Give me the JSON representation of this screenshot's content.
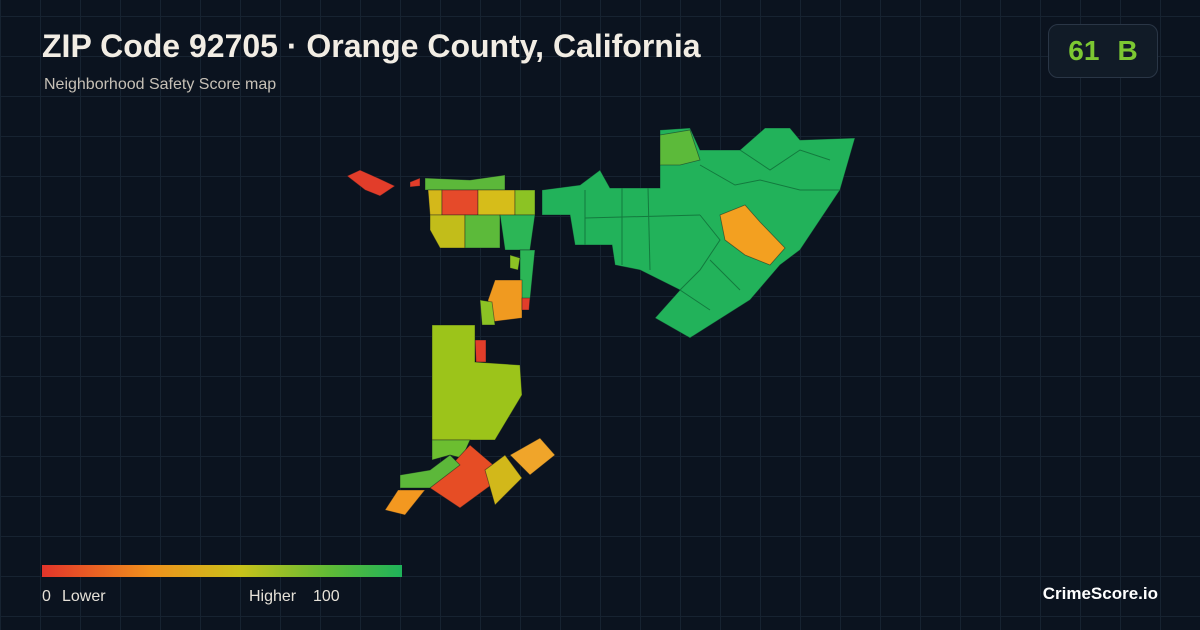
{
  "header": {
    "title": "ZIP Code 92705 · Orange County, California",
    "subtitle": "Neighborhood Safety Score map"
  },
  "badge": {
    "score": 61,
    "grade": "B"
  },
  "legend": {
    "min": 0,
    "min_label": "Lower",
    "max_label": "Higher",
    "max": 100
  },
  "brand": "CrimeScore.io"
}
